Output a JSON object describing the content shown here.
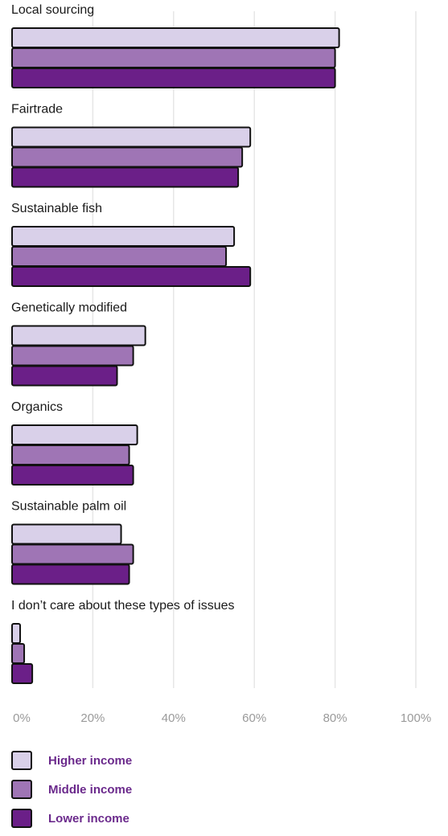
{
  "chart_data": {
    "type": "bar",
    "orientation": "horizontal",
    "categories": [
      "Local sourcing",
      "Fairtrade",
      "Sustainable fish",
      "Genetically modified",
      "Organics",
      "Sustainable palm oil",
      "I don’t care about these types of issues"
    ],
    "series": [
      {
        "name": "Higher income",
        "color": "#d9d0e9",
        "values": [
          81,
          59,
          55,
          33,
          31,
          27,
          2
        ]
      },
      {
        "name": "Middle income",
        "color": "#9f75b5",
        "values": [
          80,
          57,
          53,
          30,
          29,
          30,
          3
        ]
      },
      {
        "name": "Lower income",
        "color": "#6b1f88",
        "values": [
          80,
          56,
          59,
          26,
          30,
          29,
          5
        ]
      }
    ],
    "x_ticks": [
      "0%",
      "20%",
      "40%",
      "60%",
      "80%",
      "100%"
    ],
    "xlim": [
      0,
      100
    ],
    "grid": true,
    "legend_position": "bottom-left"
  }
}
